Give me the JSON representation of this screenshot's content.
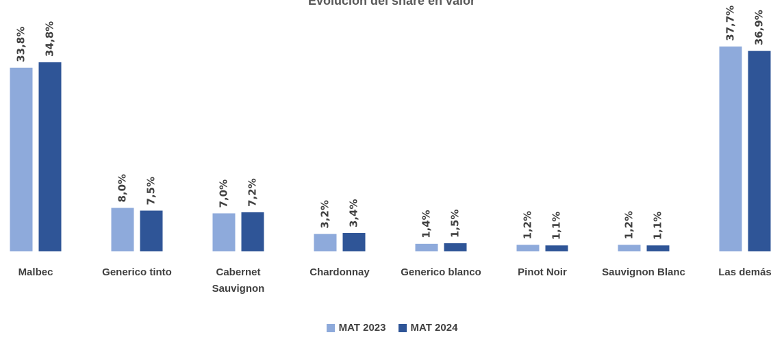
{
  "chart_data": {
    "type": "bar",
    "title": "Evolución del share en valor",
    "categories": [
      "Malbec",
      "Generico tinto",
      "Cabernet Sauvignon",
      "Chardonnay",
      "Generico blanco",
      "Pinot Noir",
      "Sauvignon Blanc",
      "Las demás"
    ],
    "series": [
      {
        "name": "MAT 2023",
        "color": "#8eaadb",
        "values": [
          33.8,
          8.0,
          7.0,
          3.2,
          1.4,
          1.2,
          1.2,
          37.7
        ],
        "value_labels": [
          "33,8%",
          "8,0%",
          "7,0%",
          "3,2%",
          "1,4%",
          "1,2%",
          "1,2%",
          "37,7%"
        ]
      },
      {
        "name": "MAT 2024",
        "color": "#2f5597",
        "values": [
          34.8,
          7.5,
          7.2,
          3.4,
          1.5,
          1.1,
          1.1,
          36.9
        ],
        "value_labels": [
          "34,8%",
          "7,5%",
          "7,2%",
          "3,4%",
          "1,5%",
          "1,1%",
          "1,1%",
          "36,9%"
        ]
      }
    ],
    "ylim": [
      0,
      46
    ],
    "legend": "bottom"
  }
}
